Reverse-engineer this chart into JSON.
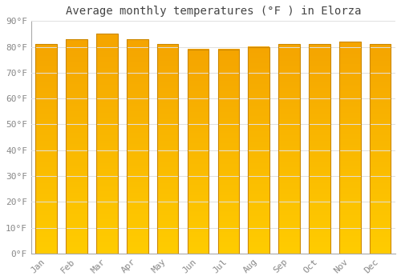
{
  "title": "Average monthly temperatures (°F ) in Elorza",
  "months": [
    "Jan",
    "Feb",
    "Mar",
    "Apr",
    "May",
    "Jun",
    "Jul",
    "Aug",
    "Sep",
    "Oct",
    "Nov",
    "Dec"
  ],
  "values": [
    81,
    83,
    85,
    83,
    81,
    79,
    79,
    80,
    81,
    81,
    82,
    81
  ],
  "ylim": [
    0,
    90
  ],
  "yticks": [
    0,
    10,
    20,
    30,
    40,
    50,
    60,
    70,
    80,
    90
  ],
  "ytick_labels": [
    "0°F",
    "10°F",
    "20°F",
    "30°F",
    "40°F",
    "50°F",
    "60°F",
    "70°F",
    "80°F",
    "90°F"
  ],
  "bar_color_bottom": "#FFCC00",
  "bar_color_top": "#F5A500",
  "bar_border_color": "#CC8800",
  "background_color": "#FFFFFF",
  "grid_color": "#E0E0E0",
  "title_fontsize": 10,
  "tick_fontsize": 8,
  "title_color": "#444444",
  "tick_color": "#888888",
  "bar_width": 0.7,
  "n_grad": 100
}
